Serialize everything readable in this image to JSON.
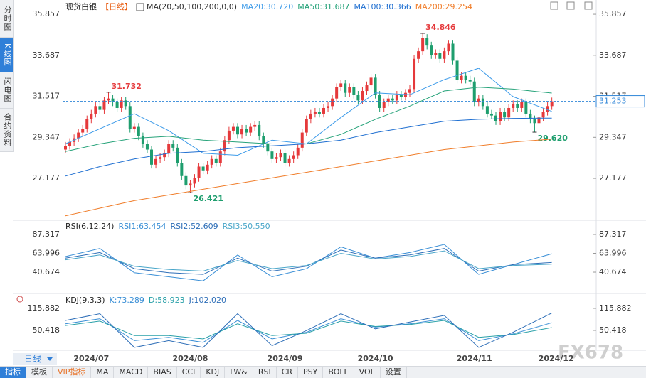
{
  "ui": {
    "side_tabs": [
      "分时图",
      "K线图",
      "闪电图",
      "合约资料"
    ],
    "period_select": "日线",
    "toolbar": [
      "指标",
      "模板",
      "VIP指标",
      "MA",
      "MACD",
      "BIAS",
      "CCI",
      "KDJ",
      "LW&",
      "RSI",
      "CR",
      "PSY",
      "BOLL",
      "VOL",
      "设置"
    ],
    "watermark": "FX678"
  },
  "chart_data": [
    {
      "type": "candlestick",
      "title": "现货白银",
      "period": "【日线】",
      "indicator": "MA(20,50,100,200,0,0)",
      "categories": [
        null,
        null,
        null,
        null,
        null,
        null,
        "2024/07",
        null,
        null,
        null,
        null,
        null,
        null,
        null,
        null,
        null,
        null,
        null,
        null,
        null,
        null,
        null,
        null,
        null,
        null,
        null,
        null,
        null,
        null,
        "2024/08",
        null,
        null,
        null,
        null,
        null,
        null,
        null,
        null,
        null,
        null,
        null,
        null,
        null,
        null,
        null,
        null,
        null,
        null,
        null,
        null,
        null,
        "2024/09",
        null,
        null,
        null,
        null,
        null,
        null,
        null,
        null,
        null,
        null,
        null,
        null,
        null,
        null,
        null,
        null,
        null,
        null,
        null,
        null,
        "2024/10",
        null,
        null,
        null,
        null,
        null,
        null,
        null,
        null,
        null,
        null,
        null,
        null,
        null,
        null,
        null,
        null,
        null,
        null,
        null,
        null,
        null,
        null,
        "2024/11",
        null,
        null,
        null,
        null,
        null,
        null,
        null,
        null,
        null,
        null,
        null,
        null,
        null,
        null,
        null,
        null,
        null,
        null,
        "2024/12"
      ],
      "open": [
        28.7,
        28.9,
        29.1,
        29.3,
        29.6,
        29.8,
        30.3,
        30.6,
        31.0,
        30.8,
        31.3,
        31.4,
        31.2,
        30.9,
        31.3,
        31.0,
        29.8,
        29.9,
        29.4,
        29.0,
        28.7,
        27.9,
        28.2,
        28.3,
        28.5,
        29.0,
        28.8,
        28.0,
        27.3,
        26.8,
        26.9,
        27.2,
        27.8,
        27.6,
        27.9,
        28.2,
        28.0,
        28.6,
        29.2,
        29.7,
        29.9,
        29.5,
        29.8,
        29.6,
        29.9,
        30.0,
        29.4,
        29.0,
        28.6,
        28.2,
        28.3,
        28.5,
        28.0,
        28.2,
        28.4,
        28.8,
        29.6,
        30.3,
        30.6,
        30.7,
        30.6,
        30.9,
        31.0,
        31.4,
        32.0,
        32.2,
        31.7,
        32.0,
        31.6,
        31.3,
        31.8,
        32.1,
        32.5,
        31.6,
        30.9,
        31.2,
        31.4,
        31.3,
        31.6,
        31.5,
        31.7,
        31.9,
        33.5,
        33.9,
        34.6,
        34.2,
        33.7,
        33.8,
        33.5,
        33.9,
        34.3,
        33.4,
        32.4,
        32.6,
        32.4,
        32.3,
        31.2,
        31.4,
        31.0,
        30.6,
        30.5,
        30.2,
        30.7,
        30.4,
        30.9,
        31.1,
        30.9,
        31.2,
        30.6,
        30.3,
        30.1,
        30.4,
        30.7,
        31.0,
        null
      ],
      "high": [
        29.1,
        29.3,
        29.5,
        29.8,
        30.0,
        30.5,
        30.8,
        31.2,
        31.2,
        31.5,
        31.732,
        31.6,
        31.4,
        31.5,
        31.5,
        31.2,
        30.1,
        30.1,
        29.6,
        29.2,
        28.9,
        28.4,
        28.5,
        28.7,
        29.2,
        29.2,
        29.0,
        28.2,
        27.5,
        27.1,
        27.4,
        28.0,
        28.0,
        28.1,
        28.4,
        28.4,
        28.8,
        29.4,
        29.9,
        30.1,
        30.1,
        30.0,
        30.0,
        30.1,
        30.2,
        30.2,
        29.6,
        29.2,
        28.8,
        28.5,
        28.7,
        28.7,
        28.4,
        28.6,
        29.0,
        29.8,
        30.5,
        30.8,
        30.9,
        30.9,
        31.1,
        31.2,
        31.6,
        32.2,
        32.4,
        32.4,
        32.2,
        32.2,
        31.8,
        32.0,
        32.3,
        32.7,
        32.7,
        31.8,
        31.4,
        31.6,
        31.6,
        31.8,
        31.8,
        31.9,
        32.1,
        33.7,
        34.1,
        34.846,
        34.8,
        34.4,
        34.0,
        34.0,
        34.1,
        34.5,
        34.5,
        33.6,
        32.8,
        32.8,
        32.6,
        32.5,
        31.6,
        31.6,
        31.2,
        30.8,
        30.7,
        30.9,
        30.9,
        31.1,
        31.3,
        31.3,
        31.4,
        31.4,
        30.8,
        30.5,
        30.6,
        30.9,
        31.2,
        31.45,
        null
      ],
      "low": [
        28.5,
        28.7,
        28.9,
        29.1,
        29.4,
        29.6,
        30.1,
        30.4,
        30.6,
        30.6,
        31.1,
        31.0,
        30.7,
        30.7,
        30.8,
        29.6,
        29.6,
        29.2,
        28.8,
        28.5,
        27.7,
        27.7,
        28.0,
        28.1,
        28.3,
        28.6,
        27.8,
        27.1,
        26.6,
        26.421,
        26.7,
        27.0,
        27.4,
        27.4,
        27.7,
        27.8,
        27.8,
        28.4,
        29.0,
        29.5,
        29.3,
        29.3,
        29.4,
        29.4,
        29.7,
        29.2,
        28.8,
        28.4,
        28.0,
        28.0,
        28.1,
        27.8,
        27.8,
        28.0,
        28.2,
        28.6,
        29.4,
        30.1,
        30.4,
        30.4,
        30.4,
        30.7,
        30.8,
        31.2,
        31.8,
        31.5,
        31.5,
        31.4,
        31.1,
        31.1,
        31.6,
        31.9,
        31.4,
        30.7,
        30.7,
        31.0,
        31.1,
        31.1,
        31.3,
        31.3,
        31.5,
        31.7,
        33.3,
        33.7,
        34.0,
        33.5,
        33.5,
        33.3,
        33.3,
        33.7,
        33.2,
        32.2,
        32.2,
        32.2,
        32.1,
        31.0,
        31.0,
        30.8,
        30.4,
        30.3,
        30.0,
        30.0,
        30.2,
        30.2,
        30.7,
        30.7,
        30.7,
        30.4,
        30.1,
        29.62,
        29.9,
        30.2,
        30.5,
        30.8,
        null
      ],
      "close": [
        28.9,
        29.1,
        29.3,
        29.6,
        29.8,
        30.3,
        30.6,
        31.0,
        30.8,
        31.3,
        31.4,
        31.2,
        30.9,
        31.3,
        31.0,
        29.8,
        29.9,
        29.4,
        29.0,
        28.7,
        27.9,
        28.2,
        28.3,
        28.5,
        29.0,
        28.8,
        28.0,
        27.3,
        26.8,
        26.9,
        27.2,
        27.8,
        27.6,
        27.9,
        28.2,
        28.0,
        28.6,
        29.2,
        29.7,
        29.9,
        29.5,
        29.8,
        29.6,
        29.9,
        30.0,
        29.4,
        29.0,
        28.6,
        28.2,
        28.3,
        28.5,
        28.0,
        28.2,
        28.4,
        28.8,
        29.6,
        30.3,
        30.6,
        30.7,
        30.6,
        30.9,
        31.0,
        31.4,
        32.0,
        32.2,
        31.7,
        32.0,
        31.6,
        31.3,
        31.8,
        32.1,
        32.5,
        31.6,
        30.9,
        31.2,
        31.4,
        31.3,
        31.6,
        31.5,
        31.7,
        31.9,
        33.5,
        33.9,
        34.6,
        34.2,
        33.7,
        33.8,
        33.5,
        33.9,
        34.3,
        33.4,
        32.4,
        32.6,
        32.4,
        32.3,
        31.2,
        31.4,
        31.0,
        30.6,
        30.5,
        30.2,
        30.7,
        30.4,
        30.9,
        31.1,
        30.9,
        31.2,
        30.6,
        30.3,
        30.1,
        30.4,
        30.7,
        31.0,
        31.253,
        null
      ],
      "up_color": "#e5393b",
      "down_color": "#1e9e6e",
      "ylim": [
        25.15,
        36.31
      ],
      "yticks": [
        35.857,
        33.687,
        31.517,
        29.347,
        27.177
      ],
      "grid": false,
      "current_price": 31.253,
      "current_color": "#2f86d8",
      "annotations": [
        {
          "index": 10,
          "value": 31.732,
          "label": "31.732"
        },
        {
          "index": 83,
          "value": 34.846,
          "label": "34.846"
        },
        {
          "index": 29,
          "value": 26.421,
          "label": "26.421"
        },
        {
          "index": 109,
          "value": 29.62,
          "label": "29.620"
        }
      ],
      "series": [
        {
          "name": "MA20:30.720",
          "color": "#3d9be9",
          "x": [
            0,
            8,
            16,
            24,
            32,
            40,
            48,
            56,
            64,
            72,
            80,
            88,
            96,
            104,
            113
          ],
          "values": [
            29.0,
            29.8,
            30.6,
            29.7,
            28.5,
            28.4,
            29.2,
            29.0,
            30.4,
            31.7,
            31.6,
            32.4,
            33.0,
            31.5,
            30.72
          ]
        },
        {
          "name": "MA50:31.687",
          "color": "#27a37a",
          "x": [
            0,
            8,
            16,
            24,
            32,
            40,
            48,
            56,
            64,
            72,
            80,
            88,
            96,
            104,
            113
          ],
          "values": [
            28.6,
            29.0,
            29.3,
            29.4,
            29.2,
            29.1,
            29.0,
            29.0,
            29.5,
            30.3,
            31.0,
            31.8,
            32.0,
            31.9,
            31.687
          ]
        },
        {
          "name": "MA100:30.366",
          "color": "#1f6fd1",
          "x": [
            0,
            8,
            16,
            24,
            32,
            40,
            48,
            56,
            64,
            72,
            80,
            88,
            96,
            104,
            113
          ],
          "values": [
            27.3,
            27.8,
            28.2,
            28.5,
            28.6,
            28.8,
            28.9,
            29.0,
            29.2,
            29.6,
            29.9,
            30.2,
            30.3,
            30.35,
            30.366
          ]
        },
        {
          "name": "MA200:29.254",
          "color": "#f07d2a",
          "x": [
            0,
            8,
            16,
            24,
            32,
            40,
            48,
            56,
            64,
            72,
            80,
            88,
            96,
            104,
            113
          ],
          "values": [
            25.2,
            25.6,
            26.0,
            26.3,
            26.6,
            26.9,
            27.2,
            27.5,
            27.8,
            28.1,
            28.4,
            28.7,
            28.9,
            29.1,
            29.254
          ]
        }
      ]
    },
    {
      "type": "line",
      "title": "RSI(6,12,24)",
      "ylim": [
        18.7,
        100.5
      ],
      "yticks": [
        87.317,
        63.996,
        40.674
      ],
      "grid": false,
      "series": [
        {
          "name": "RSI1:63.454",
          "color": "#3a8fd6",
          "x": [
            0,
            8,
            16,
            24,
            32,
            40,
            48,
            56,
            64,
            72,
            80,
            88,
            96,
            104,
            113
          ],
          "values": [
            60,
            70,
            40,
            35,
            30,
            62,
            35,
            45,
            72,
            58,
            65,
            75,
            38,
            50,
            63.454
          ]
        },
        {
          "name": "RSI2:52.609",
          "color": "#2f6fb8",
          "x": [
            0,
            8,
            16,
            24,
            32,
            40,
            48,
            56,
            64,
            72,
            80,
            88,
            96,
            104,
            113
          ],
          "values": [
            58,
            65,
            45,
            40,
            38,
            58,
            42,
            48,
            68,
            58,
            62,
            70,
            42,
            50,
            52.609
          ]
        },
        {
          "name": "RSI3:50.550",
          "color": "#49a6c9",
          "x": [
            0,
            8,
            16,
            24,
            32,
            40,
            48,
            56,
            64,
            72,
            80,
            88,
            96,
            104,
            113
          ],
          "values": [
            56,
            62,
            48,
            44,
            42,
            55,
            45,
            49,
            64,
            57,
            60,
            67,
            45,
            49,
            50.55
          ]
        }
      ]
    },
    {
      "type": "line",
      "title": "KDJ(9,3,3)",
      "ylim": [
        -2.4,
        145.4
      ],
      "yticks": [
        115.882,
        50.418
      ],
      "grid": false,
      "series": [
        {
          "name": "K:73.289",
          "color": "#3a8fd6",
          "x": [
            0,
            8,
            16,
            24,
            32,
            40,
            48,
            56,
            64,
            72,
            80,
            88,
            96,
            104,
            113
          ],
          "values": [
            70,
            85,
            20,
            30,
            15,
            80,
            25,
            45,
            85,
            60,
            70,
            85,
            20,
            40,
            73.289
          ]
        },
        {
          "name": "D:58.923",
          "color": "#29a0a8",
          "x": [
            0,
            8,
            16,
            24,
            32,
            40,
            48,
            56,
            64,
            72,
            80,
            88,
            96,
            104,
            113
          ],
          "values": [
            65,
            78,
            35,
            35,
            25,
            70,
            35,
            42,
            78,
            62,
            68,
            80,
            30,
            38,
            58.923
          ]
        },
        {
          "name": "J:102.020",
          "color": "#2f6fb8",
          "x": [
            0,
            8,
            16,
            24,
            32,
            40,
            48,
            56,
            64,
            72,
            80,
            88,
            96,
            104,
            113
          ],
          "values": [
            80,
            100,
            0,
            20,
            0,
            100,
            5,
            50,
            100,
            55,
            75,
            95,
            0,
            45,
            102.02
          ]
        }
      ]
    }
  ]
}
